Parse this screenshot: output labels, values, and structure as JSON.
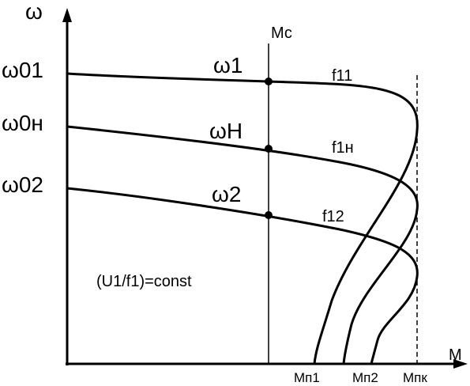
{
  "axes": {
    "y_label": "ω",
    "x_label": "M"
  },
  "lines": {
    "mc": "Мс"
  },
  "y_labels": [
    "ω01",
    "ω0н",
    "ω02"
  ],
  "point_labels": [
    "ω1",
    "ωН",
    "ω2"
  ],
  "curve_labels": [
    "f11",
    "f1н",
    "f12"
  ],
  "note": "(U1/f1)=const",
  "x_labels": [
    "Мп1",
    "Мп2",
    "Мпк"
  ]
}
